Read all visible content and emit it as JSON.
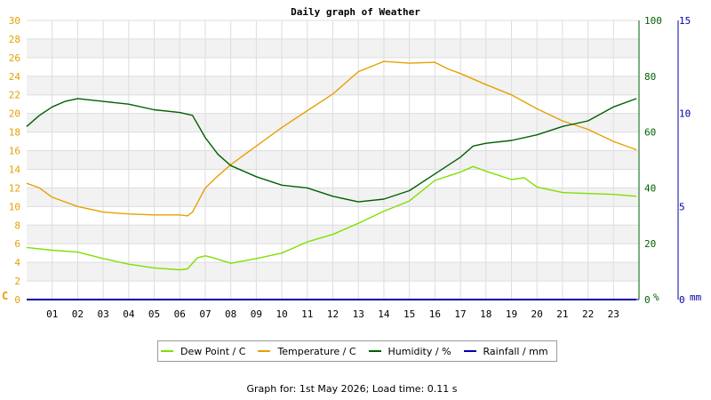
{
  "chart_data": {
    "type": "line",
    "title": "Daily graph of Weather",
    "x_ticks": [
      "01",
      "02",
      "03",
      "04",
      "05",
      "06",
      "07",
      "08",
      "09",
      "10",
      "11",
      "12",
      "13",
      "14",
      "15",
      "16",
      "17",
      "18",
      "19",
      "20",
      "21",
      "22",
      "23"
    ],
    "xlim": [
      0,
      24
    ],
    "grid": true,
    "legend_position": "bottom",
    "axes": {
      "left": {
        "unit_label": "C",
        "ticks": [
          0,
          2,
          4,
          6,
          8,
          10,
          12,
          14,
          16,
          18,
          20,
          22,
          24,
          26,
          28,
          30
        ],
        "ylim": [
          0,
          30
        ],
        "color": "#e8a000"
      },
      "right1": {
        "unit_label": "%",
        "ticks": [
          0,
          20,
          40,
          60,
          80,
          100
        ],
        "ylim": [
          0,
          100
        ],
        "color": "#006000"
      },
      "right2": {
        "unit_label": "mm",
        "ticks": [
          0,
          5,
          10,
          15
        ],
        "ylim": [
          0,
          15
        ],
        "color": "#0000aa"
      }
    },
    "series": [
      {
        "name": "Dew Point / C",
        "axis": "left",
        "color": "#7fe000",
        "points": [
          [
            0,
            5.6
          ],
          [
            1,
            5.3
          ],
          [
            2,
            5.1
          ],
          [
            3,
            4.4
          ],
          [
            4,
            3.8
          ],
          [
            5,
            3.4
          ],
          [
            6,
            3.2
          ],
          [
            6.3,
            3.3
          ],
          [
            6.7,
            4.5
          ],
          [
            7,
            4.7
          ],
          [
            7.3,
            4.5
          ],
          [
            8,
            3.9
          ],
          [
            9,
            4.4
          ],
          [
            10,
            5.0
          ],
          [
            11,
            6.2
          ],
          [
            12,
            7.0
          ],
          [
            13,
            8.2
          ],
          [
            14,
            9.5
          ],
          [
            15,
            10.6
          ],
          [
            16,
            12.8
          ],
          [
            17,
            13.7
          ],
          [
            17.5,
            14.3
          ],
          [
            18,
            13.8
          ],
          [
            19,
            12.9
          ],
          [
            19.5,
            13.1
          ],
          [
            20,
            12.1
          ],
          [
            21,
            11.5
          ],
          [
            22,
            11.4
          ],
          [
            23,
            11.3
          ],
          [
            23.9,
            11.1
          ]
        ]
      },
      {
        "name": "Temperature / C",
        "axis": "left",
        "color": "#e8a000",
        "points": [
          [
            0,
            12.5
          ],
          [
            0.5,
            12.0
          ],
          [
            1,
            11.0
          ],
          [
            2,
            10.0
          ],
          [
            3,
            9.4
          ],
          [
            4,
            9.2
          ],
          [
            5,
            9.1
          ],
          [
            6,
            9.1
          ],
          [
            6.3,
            9.0
          ],
          [
            6.5,
            9.4
          ],
          [
            7,
            12.0
          ],
          [
            7.5,
            13.3
          ],
          [
            8,
            14.5
          ],
          [
            9,
            16.5
          ],
          [
            10,
            18.5
          ],
          [
            11,
            20.3
          ],
          [
            12,
            22.1
          ],
          [
            13,
            24.5
          ],
          [
            14,
            25.6
          ],
          [
            15,
            25.4
          ],
          [
            16,
            25.5
          ],
          [
            16.5,
            24.8
          ],
          [
            17,
            24.3
          ],
          [
            18,
            23.1
          ],
          [
            19,
            22.0
          ],
          [
            20,
            20.5
          ],
          [
            21,
            19.2
          ],
          [
            22,
            18.3
          ],
          [
            23,
            17.0
          ],
          [
            23.9,
            16.1
          ]
        ]
      },
      {
        "name": "Humidity / %",
        "axis": "right1",
        "color": "#006000",
        "points": [
          [
            0,
            62
          ],
          [
            0.5,
            66
          ],
          [
            1,
            69
          ],
          [
            1.5,
            71
          ],
          [
            2,
            72
          ],
          [
            3,
            71
          ],
          [
            4,
            70
          ],
          [
            5,
            68
          ],
          [
            6,
            67
          ],
          [
            6.5,
            66
          ],
          [
            7,
            58
          ],
          [
            7.5,
            52
          ],
          [
            8,
            48
          ],
          [
            9,
            44
          ],
          [
            10,
            41
          ],
          [
            11,
            40
          ],
          [
            12,
            37
          ],
          [
            13,
            35
          ],
          [
            14,
            36
          ],
          [
            15,
            39
          ],
          [
            16,
            45
          ],
          [
            17,
            51
          ],
          [
            17.5,
            55
          ],
          [
            18,
            56
          ],
          [
            19,
            57
          ],
          [
            20,
            59
          ],
          [
            21,
            62
          ],
          [
            22,
            64
          ],
          [
            23,
            69
          ],
          [
            23.9,
            72
          ]
        ]
      },
      {
        "name": "Rainfall / mm",
        "axis": "right2",
        "color": "#0000aa",
        "points": [
          [
            0,
            0
          ],
          [
            23.9,
            0
          ]
        ]
      }
    ]
  },
  "legend": [
    {
      "label": "Dew Point / C",
      "color": "#7fe000"
    },
    {
      "label": "Temperature / C",
      "color": "#e8a000"
    },
    {
      "label": "Humidity / %",
      "color": "#006000"
    },
    {
      "label": "Rainfall / mm",
      "color": "#0000aa"
    }
  ],
  "footer": "Graph for: 1st May 2026; Load time: 0.11 s"
}
